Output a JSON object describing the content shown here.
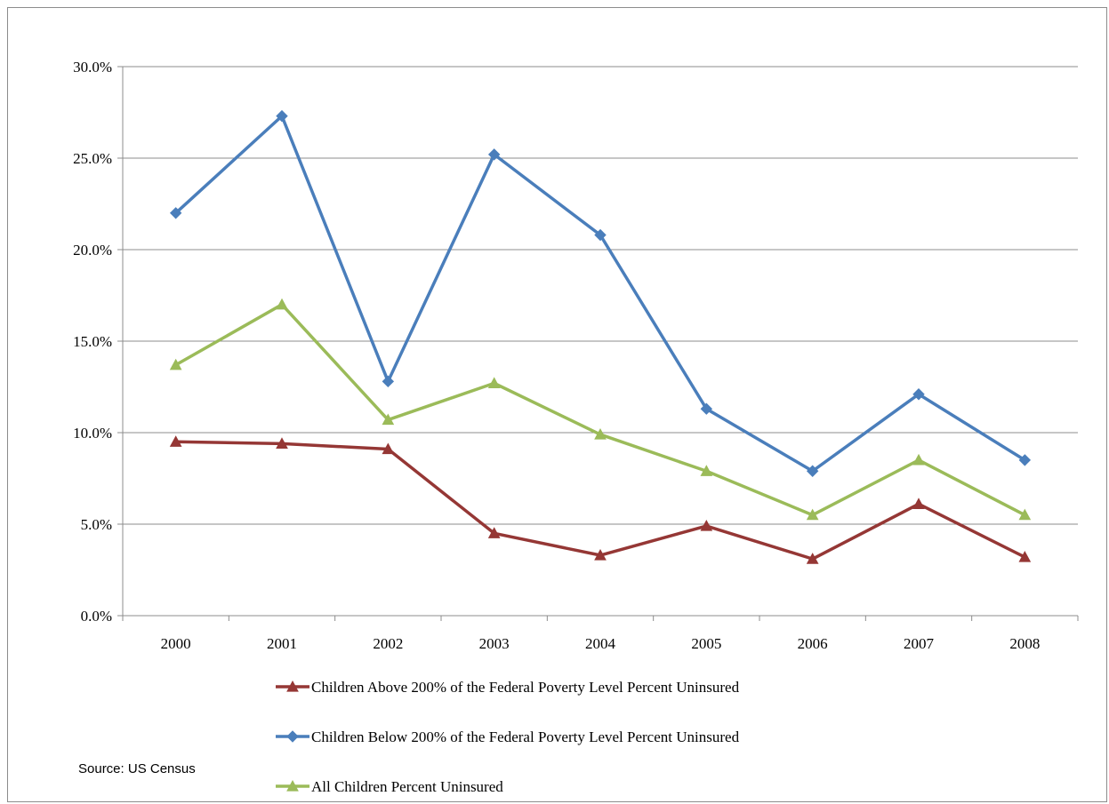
{
  "source": "Source: US Census",
  "chart_data": {
    "type": "line",
    "title": "",
    "xlabel": "",
    "ylabel": "",
    "categories": [
      "2000",
      "2001",
      "2002",
      "2003",
      "2004",
      "2005",
      "2006",
      "2007",
      "2008"
    ],
    "ylim": [
      0,
      30
    ],
    "yticks": [
      "0.0%",
      "5.0%",
      "10.0%",
      "15.0%",
      "20.0%",
      "25.0%",
      "30.0%"
    ],
    "grid": true,
    "legend_position": "bottom",
    "series": [
      {
        "name": "Children Above 200% of the Federal Poverty Level Percent Uninsured",
        "values": [
          9.5,
          9.4,
          9.1,
          4.5,
          3.3,
          4.9,
          3.1,
          6.1,
          3.2
        ],
        "color": "#953735",
        "marker": "triangle"
      },
      {
        "name": "Children Below 200% of the Federal Poverty Level Percent Uninsured",
        "values": [
          22.0,
          27.3,
          12.8,
          25.2,
          20.8,
          11.3,
          7.9,
          12.1,
          8.5
        ],
        "color": "#4a7ebb",
        "marker": "diamond"
      },
      {
        "name": "All Children Percent Uninsured",
        "values": [
          13.7,
          17.0,
          10.7,
          12.7,
          9.9,
          7.9,
          5.5,
          8.5,
          5.5
        ],
        "color": "#9bbb59",
        "marker": "triangle"
      }
    ]
  }
}
